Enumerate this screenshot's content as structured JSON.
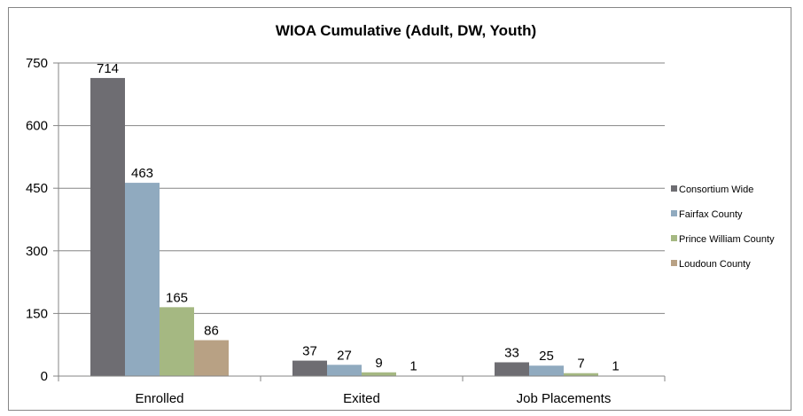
{
  "chart_data": {
    "type": "bar",
    "title": "WIOA Cumulative (Adult, DW, Youth)",
    "xlabel": "",
    "ylabel": "",
    "ylim": [
      0,
      750
    ],
    "yticks": [
      "0",
      "150",
      "300",
      "450",
      "600",
      "750"
    ],
    "ytick_values": [
      0,
      150,
      300,
      450,
      600,
      750
    ],
    "grid": true,
    "legend_position": "right",
    "categories": [
      "Enrolled",
      "Exited",
      "Job Placements"
    ],
    "series": [
      {
        "name": "Consortium Wide",
        "color": "#6e6d72",
        "values": [
          714,
          37,
          33
        ]
      },
      {
        "name": "Fairfax County",
        "color": "#90aabf",
        "values": [
          463,
          27,
          25
        ]
      },
      {
        "name": "Prince William County",
        "color": "#a5b882",
        "values": [
          165,
          9,
          7
        ]
      },
      {
        "name": "Loudoun County",
        "color": "#b8a184",
        "values": [
          86,
          1,
          1
        ]
      }
    ]
  }
}
